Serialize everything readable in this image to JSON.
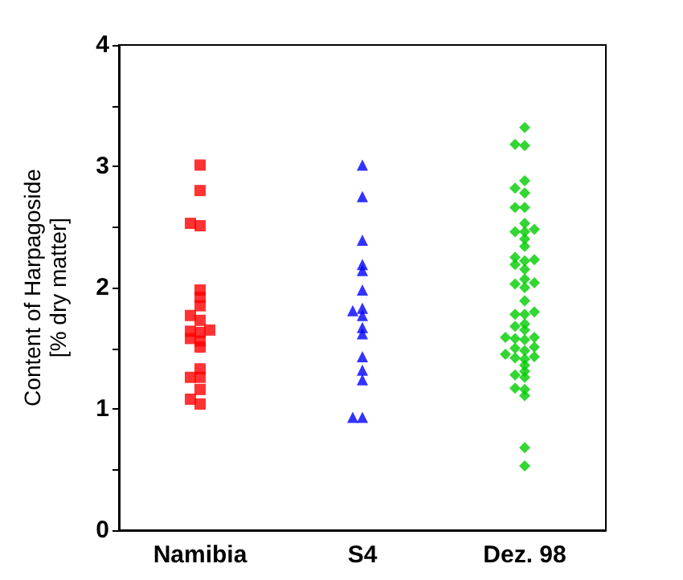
{
  "chart_data": {
    "type": "scatter",
    "ylabel": "Content of Harpagoside\n[% dry matter]",
    "categories": [
      "Namibia",
      "S4",
      "Dez. 98"
    ],
    "ylim": [
      0,
      4
    ],
    "yticks": [
      0,
      {
        "value": 0.5,
        "label": null
      },
      1,
      {
        "value": 1.5,
        "label": null
      },
      2,
      {
        "value": 2.5,
        "label": null
      },
      3,
      {
        "value": 3.5,
        "label": null
      },
      4
    ],
    "grid": false,
    "series": [
      {
        "color": "#ff0000",
        "marker": "square",
        "x": [
          "Namibia",
          "Namibia",
          "Namibia",
          "Namibia",
          "Namibia",
          "Namibia",
          "Namibia",
          "Namibia",
          "Namibia",
          "Namibia",
          "Namibia",
          "Namibia",
          "Namibia",
          "Namibia",
          "Namibia",
          "Namibia",
          "Namibia",
          "Namibia",
          "Namibia",
          "Namibia",
          "Namibia"
        ],
        "values": [
          3.01,
          2.8,
          2.51,
          2.53,
          1.98,
          1.92,
          1.85,
          1.77,
          1.73,
          1.64,
          1.65,
          1.63,
          1.58,
          1.56,
          1.51,
          1.33,
          1.26,
          1.26,
          1.16,
          1.08,
          1.04
        ]
      },
      {
        "color": "#0000ff",
        "marker": "triangle",
        "x": [
          "S4",
          "S4",
          "S4",
          "S4",
          "S4",
          "S4",
          "S4",
          "S4",
          "S4",
          "S4",
          "S4",
          "S4",
          "S4",
          "S4",
          "S4",
          "S4"
        ],
        "values": [
          3.01,
          2.75,
          2.39,
          2.19,
          2.14,
          1.98,
          1.81,
          1.83,
          1.77,
          1.67,
          1.62,
          1.43,
          1.32,
          1.24,
          0.93,
          0.93
        ]
      },
      {
        "color": "#00cc00",
        "marker": "diamond",
        "x": [
          "Dez. 98",
          "Dez. 98",
          "Dez. 98",
          "Dez. 98",
          "Dez. 98",
          "Dez. 98",
          "Dez. 98",
          "Dez. 98",
          "Dez. 98",
          "Dez. 98",
          "Dez. 98",
          "Dez. 98",
          "Dez. 98",
          "Dez. 98",
          "Dez. 98",
          "Dez. 98",
          "Dez. 98",
          "Dez. 98",
          "Dez. 98",
          "Dez. 98",
          "Dez. 98",
          "Dez. 98",
          "Dez. 98",
          "Dez. 98",
          "Dez. 98",
          "Dez. 98",
          "Dez. 98",
          "Dez. 98",
          "Dez. 98",
          "Dez. 98",
          "Dez. 98",
          "Dez. 98",
          "Dez. 98",
          "Dez. 98",
          "Dez. 98",
          "Dez. 98",
          "Dez. 98",
          "Dez. 98",
          "Dez. 98",
          "Dez. 98",
          "Dez. 98",
          "Dez. 98",
          "Dez. 98",
          "Dez. 98",
          "Dez. 98",
          "Dez. 98",
          "Dez. 98",
          "Dez. 98",
          "Dez. 98",
          "Dez. 98"
        ],
        "values": [
          3.32,
          3.18,
          3.17,
          2.88,
          2.82,
          2.78,
          2.66,
          2.66,
          2.53,
          2.48,
          2.46,
          2.46,
          2.4,
          2.34,
          2.25,
          2.22,
          2.23,
          2.19,
          2.15,
          2.07,
          2.04,
          2.03,
          2.0,
          1.89,
          1.8,
          1.78,
          1.78,
          1.7,
          1.68,
          1.65,
          1.59,
          1.58,
          1.57,
          1.59,
          1.51,
          1.5,
          1.48,
          1.45,
          1.43,
          1.42,
          1.41,
          1.36,
          1.31,
          1.28,
          1.26,
          1.17,
          1.16,
          1.11,
          0.68,
          0.53
        ]
      }
    ]
  }
}
